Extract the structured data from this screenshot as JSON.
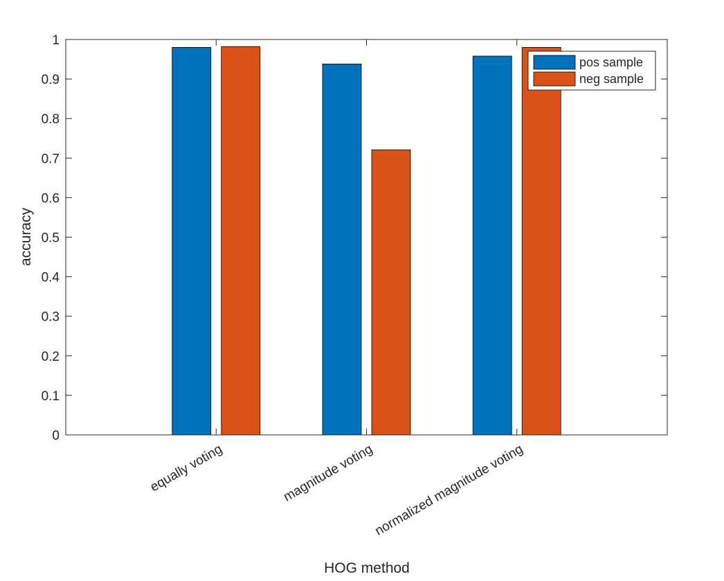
{
  "chart_data": {
    "type": "bar",
    "title": "",
    "xlabel": "HOG method",
    "ylabel": "accuracy",
    "categories": [
      "equally voting",
      "magnitude voting",
      "normalized magnitude voting"
    ],
    "series": [
      {
        "name": "pos sample",
        "color": "#0072BD",
        "values": [
          0.98,
          0.938,
          0.958
        ]
      },
      {
        "name": "neg sample",
        "color": "#D95319",
        "values": [
          0.982,
          0.721,
          0.98
        ]
      }
    ],
    "ylim": [
      0,
      1
    ],
    "yticks": [
      "0",
      "0.1",
      "0.2",
      "0.3",
      "0.4",
      "0.5",
      "0.6",
      "0.7",
      "0.8",
      "0.9",
      "1"
    ],
    "grid": false,
    "legend_position": "top-right",
    "tick_label_rotation": "rotated ~30 degrees"
  }
}
